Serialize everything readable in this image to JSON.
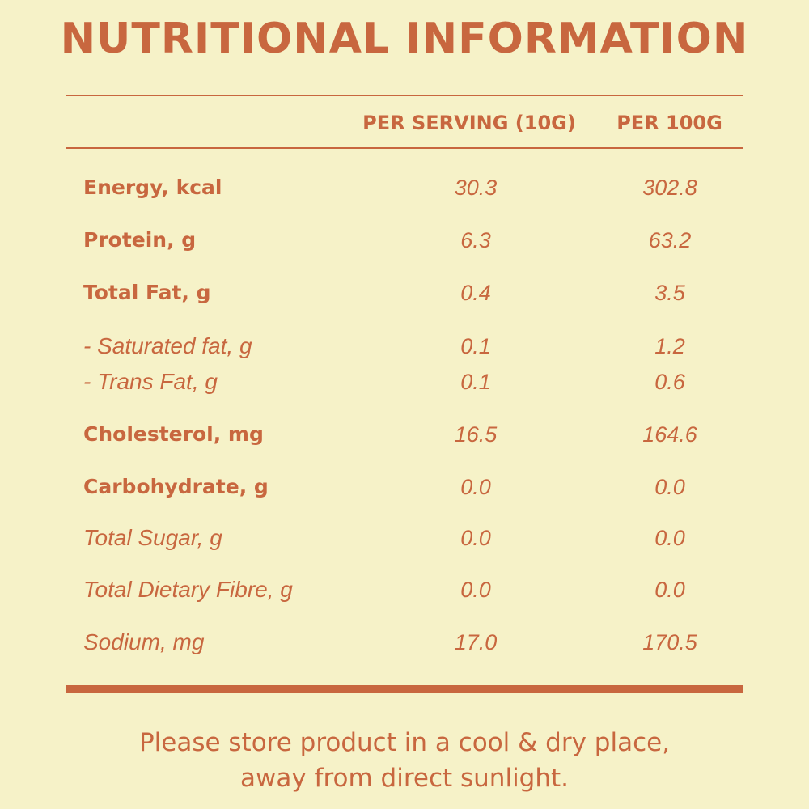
{
  "title": "NUTRITIONAL INFORMATION",
  "columns": {
    "per_serving": "PER SERVING (10G)",
    "per_100g": "PER 100G"
  },
  "rows": [
    {
      "label": "Energy, kcal",
      "per_serving": "30.3",
      "per_100g": "302.8",
      "style": "bold"
    },
    {
      "label": "Protein, g",
      "per_serving": "6.3",
      "per_100g": "63.2",
      "style": "bold"
    },
    {
      "label": "Total Fat, g",
      "per_serving": "0.4",
      "per_100g": "3.5",
      "style": "bold"
    },
    {
      "label": "- Saturated fat, g",
      "per_serving": "0.1",
      "per_100g": "1.2",
      "style": "italic"
    },
    {
      "label": "- Trans Fat, g",
      "per_serving": "0.1",
      "per_100g": "0.6",
      "style": "italic"
    },
    {
      "label": "Cholesterol, mg",
      "per_serving": "16.5",
      "per_100g": "164.6",
      "style": "bold"
    },
    {
      "label": "Carbohydrate, g",
      "per_serving": "0.0",
      "per_100g": "0.0",
      "style": "bold"
    },
    {
      "label": "Total Sugar, g",
      "per_serving": "0.0",
      "per_100g": "0.0",
      "style": "italic"
    },
    {
      "label": "Total Dietary Fibre, g",
      "per_serving": "0.0",
      "per_100g": "0.0",
      "style": "italic"
    },
    {
      "label": "Sodium, mg",
      "per_serving": "17.0",
      "per_100g": "170.5",
      "style": "italic"
    }
  ],
  "footer": {
    "line1": "Please store product in a cool & dry place,",
    "line2": "away from direct sunlight."
  },
  "colors": {
    "background": "#f6f2c8",
    "text": "#c8673f"
  }
}
